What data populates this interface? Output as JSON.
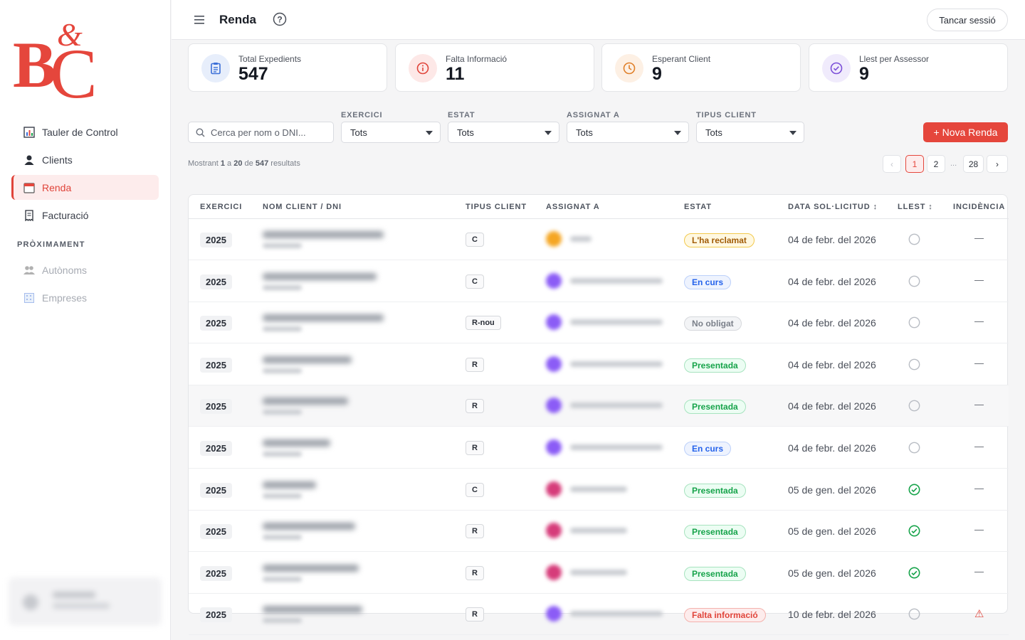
{
  "app": {
    "logo_text": "B&C",
    "page_title": "Renda",
    "logout": "Tancar sessió"
  },
  "sidebar": {
    "items": [
      {
        "label": "Tauler de Control",
        "icon": "bar-chart-icon"
      },
      {
        "label": "Clients",
        "icon": "user-icon"
      },
      {
        "label": "Renda",
        "icon": "calendar-icon",
        "active": true
      },
      {
        "label": "Facturació",
        "icon": "receipt-icon"
      }
    ],
    "section": "PRÒXIMAMENT",
    "soon": [
      {
        "label": "Autònoms",
        "icon": "people-icon"
      },
      {
        "label": "Empreses",
        "icon": "building-icon"
      }
    ]
  },
  "stats": [
    {
      "label": "Total Expedients",
      "value": "547",
      "icon": "clipboard-icon",
      "color": "#3b6fd8",
      "bg": "#e7eefb"
    },
    {
      "label": "Falta Informació",
      "value": "11",
      "icon": "info-icon",
      "color": "#e0443a",
      "bg": "#fde8e7"
    },
    {
      "label": "Esperant Client",
      "value": "9",
      "icon": "clock-icon",
      "color": "#e0802a",
      "bg": "#fdf0e4"
    },
    {
      "label": "Llest per Assessor",
      "value": "9",
      "icon": "check-circle-icon",
      "color": "#7b4fd8",
      "bg": "#f0ebfc"
    }
  ],
  "filters": {
    "search_placeholder": "Cerca per nom o DNI...",
    "exercici": {
      "label": "EXERCICI",
      "value": "Tots"
    },
    "estat": {
      "label": "ESTAT",
      "value": "Tots"
    },
    "assignat": {
      "label": "ASSIGNAT A",
      "value": "Tots"
    },
    "tipus": {
      "label": "TIPUS CLIENT",
      "value": "Tots"
    }
  },
  "new_button": "+ Nova Renda",
  "results": {
    "prefix": "Mostrant",
    "from": "1",
    "a": "a",
    "to": "20",
    "de": "de",
    "total": "547",
    "suffix": "resultats"
  },
  "pagination": {
    "prev": "‹",
    "pages": [
      "1",
      "2"
    ],
    "ellipsis": "...",
    "last": "28",
    "next": "›",
    "current": "1"
  },
  "table": {
    "headers": [
      "EXERCICI",
      "NOM CLIENT / DNI",
      "TIPUS CLIENT",
      "ASSIGNAT A",
      "ESTAT",
      "DATA SOL·LICITUD ↕",
      "LLEST ↕",
      "INCIDÈNCIA"
    ],
    "rows": [
      {
        "year": "2025",
        "type": "C",
        "avatar": "#f5a623",
        "status": "L'ha reclamat",
        "status_kind": "warn",
        "date": "04 de febr. del 2026",
        "ready": false,
        "incident": "—"
      },
      {
        "year": "2025",
        "type": "C",
        "avatar": "#8b5cf6",
        "status": "En curs",
        "status_kind": "info",
        "date": "04 de febr. del 2026",
        "ready": false,
        "incident": "—"
      },
      {
        "year": "2025",
        "type": "R-nou",
        "avatar": "#8b5cf6",
        "status": "No obligat",
        "status_kind": "neutral",
        "date": "04 de febr. del 2026",
        "ready": false,
        "incident": "—"
      },
      {
        "year": "2025",
        "type": "R",
        "avatar": "#8b5cf6",
        "status": "Presentada",
        "status_kind": "ok",
        "date": "04 de febr. del 2026",
        "ready": false,
        "incident": "—"
      },
      {
        "year": "2025",
        "type": "R",
        "avatar": "#8b5cf6",
        "status": "Presentada",
        "status_kind": "ok",
        "date": "04 de febr. del 2026",
        "ready": false,
        "incident": "—"
      },
      {
        "year": "2025",
        "type": "R",
        "avatar": "#8b5cf6",
        "status": "En curs",
        "status_kind": "info",
        "date": "04 de febr. del 2026",
        "ready": false,
        "incident": "—"
      },
      {
        "year": "2025",
        "type": "C",
        "avatar": "#d63c7a",
        "status": "Presentada",
        "status_kind": "ok",
        "date": "05 de gen. del 2026",
        "ready": true,
        "incident": "—"
      },
      {
        "year": "2025",
        "type": "R",
        "avatar": "#d63c7a",
        "status": "Presentada",
        "status_kind": "ok",
        "date": "05 de gen. del 2026",
        "ready": true,
        "incident": "—"
      },
      {
        "year": "2025",
        "type": "R",
        "avatar": "#d63c7a",
        "status": "Presentada",
        "status_kind": "ok",
        "date": "05 de gen. del 2026",
        "ready": true,
        "incident": "—"
      },
      {
        "year": "2025",
        "type": "R",
        "avatar": "#8b5cf6",
        "status": "Falta informació",
        "status_kind": "danger",
        "date": "10 de febr. del 2026",
        "ready": false,
        "incident": "⚠"
      }
    ]
  },
  "colors": {
    "accent": "#e5463c",
    "ok": "#16a34a",
    "info": "#2563eb"
  }
}
